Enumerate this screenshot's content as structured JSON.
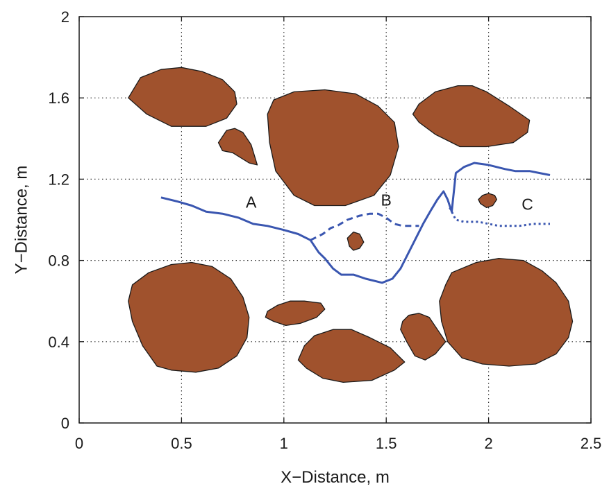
{
  "chart_data": {
    "type": "line",
    "xlabel": "X−Distance, m",
    "ylabel": "Y−Distance, m",
    "xlim": [
      0,
      2.5
    ],
    "ylim": [
      0,
      2
    ],
    "xticks": [
      0,
      0.5,
      1,
      1.5,
      2,
      2.5
    ],
    "xtick_labels": [
      "0",
      "0.5",
      "1",
      "1.5",
      "2",
      "2.5"
    ],
    "yticks": [
      0,
      0.4,
      0.8,
      1.2,
      1.6,
      2
    ],
    "ytick_labels": [
      "0",
      "0.4",
      "0.8",
      "1.2",
      "1.6",
      "2"
    ],
    "grid": true,
    "colors": {
      "obstacle_fill": "#a0522d",
      "obstacle_edge": "#1a1a1a",
      "path": "#3a56b0",
      "grid": "#333333",
      "axes": "#1a1a1a"
    },
    "obstacles": [
      {
        "points": [
          [
            0.24,
            1.6
          ],
          [
            0.3,
            1.7
          ],
          [
            0.4,
            1.74
          ],
          [
            0.5,
            1.75
          ],
          [
            0.6,
            1.73
          ],
          [
            0.7,
            1.69
          ],
          [
            0.76,
            1.63
          ],
          [
            0.77,
            1.57
          ],
          [
            0.72,
            1.5
          ],
          [
            0.62,
            1.46
          ],
          [
            0.45,
            1.46
          ],
          [
            0.33,
            1.52
          ]
        ]
      },
      {
        "points": [
          [
            0.68,
            1.38
          ],
          [
            0.72,
            1.44
          ],
          [
            0.76,
            1.45
          ],
          [
            0.8,
            1.43
          ],
          [
            0.84,
            1.37
          ],
          [
            0.87,
            1.27
          ],
          [
            0.83,
            1.28
          ],
          [
            0.75,
            1.33
          ],
          [
            0.7,
            1.34
          ]
        ]
      },
      {
        "points": [
          [
            0.92,
            1.52
          ],
          [
            0.95,
            1.59
          ],
          [
            1.05,
            1.63
          ],
          [
            1.2,
            1.64
          ],
          [
            1.35,
            1.62
          ],
          [
            1.46,
            1.56
          ],
          [
            1.54,
            1.48
          ],
          [
            1.56,
            1.36
          ],
          [
            1.52,
            1.22
          ],
          [
            1.44,
            1.12
          ],
          [
            1.3,
            1.07
          ],
          [
            1.15,
            1.07
          ],
          [
            1.05,
            1.12
          ],
          [
            0.96,
            1.24
          ],
          [
            0.93,
            1.38
          ]
        ]
      },
      {
        "points": [
          [
            1.66,
            1.57
          ],
          [
            1.74,
            1.63
          ],
          [
            1.85,
            1.66
          ],
          [
            1.92,
            1.66
          ],
          [
            1.99,
            1.63
          ],
          [
            2.1,
            1.56
          ],
          [
            2.2,
            1.49
          ],
          [
            2.19,
            1.43
          ],
          [
            2.12,
            1.38
          ],
          [
            1.99,
            1.36
          ],
          [
            1.86,
            1.36
          ],
          [
            1.74,
            1.42
          ],
          [
            1.66,
            1.48
          ],
          [
            1.63,
            1.52
          ]
        ]
      },
      {
        "points": [
          [
            1.34,
            0.94
          ],
          [
            1.37,
            0.93
          ],
          [
            1.39,
            0.89
          ],
          [
            1.37,
            0.86
          ],
          [
            1.34,
            0.85
          ],
          [
            1.32,
            0.87
          ],
          [
            1.31,
            0.91
          ]
        ]
      },
      {
        "points": [
          [
            1.97,
            1.12
          ],
          [
            2.0,
            1.13
          ],
          [
            2.03,
            1.12
          ],
          [
            2.04,
            1.1
          ],
          [
            2.02,
            1.07
          ],
          [
            1.99,
            1.06
          ],
          [
            1.96,
            1.08
          ],
          [
            1.95,
            1.1
          ]
        ]
      },
      {
        "points": [
          [
            0.26,
            0.68
          ],
          [
            0.34,
            0.74
          ],
          [
            0.45,
            0.78
          ],
          [
            0.55,
            0.79
          ],
          [
            0.65,
            0.77
          ],
          [
            0.74,
            0.71
          ],
          [
            0.8,
            0.62
          ],
          [
            0.83,
            0.52
          ],
          [
            0.82,
            0.42
          ],
          [
            0.77,
            0.33
          ],
          [
            0.68,
            0.27
          ],
          [
            0.57,
            0.25
          ],
          [
            0.45,
            0.26
          ],
          [
            0.38,
            0.28
          ],
          [
            0.31,
            0.38
          ],
          [
            0.26,
            0.5
          ],
          [
            0.24,
            0.6
          ]
        ]
      },
      {
        "points": [
          [
            0.92,
            0.55
          ],
          [
            0.97,
            0.58
          ],
          [
            1.03,
            0.6
          ],
          [
            1.1,
            0.6
          ],
          [
            1.18,
            0.59
          ],
          [
            1.2,
            0.56
          ],
          [
            1.16,
            0.52
          ],
          [
            1.08,
            0.49
          ],
          [
            1.01,
            0.48
          ],
          [
            0.95,
            0.5
          ],
          [
            0.91,
            0.52
          ]
        ]
      },
      {
        "points": [
          [
            1.1,
            0.38
          ],
          [
            1.15,
            0.43
          ],
          [
            1.24,
            0.46
          ],
          [
            1.33,
            0.46
          ],
          [
            1.42,
            0.42
          ],
          [
            1.52,
            0.37
          ],
          [
            1.59,
            0.3
          ],
          [
            1.54,
            0.26
          ],
          [
            1.43,
            0.21
          ],
          [
            1.29,
            0.2
          ],
          [
            1.19,
            0.22
          ],
          [
            1.11,
            0.27
          ],
          [
            1.07,
            0.31
          ]
        ]
      },
      {
        "points": [
          [
            1.58,
            0.5
          ],
          [
            1.61,
            0.53
          ],
          [
            1.66,
            0.54
          ],
          [
            1.71,
            0.52
          ],
          [
            1.75,
            0.46
          ],
          [
            1.79,
            0.4
          ],
          [
            1.74,
            0.34
          ],
          [
            1.69,
            0.31
          ],
          [
            1.64,
            0.33
          ],
          [
            1.6,
            0.4
          ],
          [
            1.57,
            0.46
          ]
        ]
      },
      {
        "points": [
          [
            1.82,
            0.74
          ],
          [
            1.94,
            0.79
          ],
          [
            2.05,
            0.81
          ],
          [
            2.17,
            0.8
          ],
          [
            2.26,
            0.75
          ],
          [
            2.33,
            0.69
          ],
          [
            2.39,
            0.6
          ],
          [
            2.41,
            0.5
          ],
          [
            2.39,
            0.42
          ],
          [
            2.33,
            0.34
          ],
          [
            2.23,
            0.29
          ],
          [
            2.1,
            0.28
          ],
          [
            1.97,
            0.29
          ],
          [
            1.87,
            0.32
          ],
          [
            1.8,
            0.4
          ],
          [
            1.77,
            0.5
          ],
          [
            1.76,
            0.6
          ],
          [
            1.79,
            0.68
          ]
        ]
      }
    ],
    "series": [
      {
        "name": "A",
        "style": "solid",
        "x": [
          0.4,
          0.48,
          0.55,
          0.62,
          0.7,
          0.78,
          0.85,
          0.92,
          1.0,
          1.07,
          1.13
        ],
        "y": [
          1.11,
          1.09,
          1.07,
          1.04,
          1.03,
          1.01,
          0.98,
          0.97,
          0.95,
          0.93,
          0.9
        ]
      },
      {
        "name": "B",
        "style": "dashed",
        "x": [
          1.13,
          1.19,
          1.23,
          1.26,
          1.31,
          1.37,
          1.42,
          1.46,
          1.5,
          1.54,
          1.58,
          1.62,
          1.66
        ],
        "y": [
          0.9,
          0.93,
          0.96,
          0.97,
          1.0,
          1.02,
          1.03,
          1.03,
          1.01,
          0.98,
          0.97,
          0.97,
          0.97
        ]
      },
      {
        "name": "",
        "style": "solid",
        "x": [
          1.13,
          1.17,
          1.2,
          1.24,
          1.28,
          1.34,
          1.4,
          1.48,
          1.53,
          1.57,
          1.6,
          1.64,
          1.68,
          1.72,
          1.75,
          1.78,
          1.8,
          1.82,
          1.84,
          1.88,
          1.93,
          2.0,
          2.08,
          2.13,
          2.2,
          2.25,
          2.3
        ],
        "y": [
          0.9,
          0.84,
          0.81,
          0.76,
          0.73,
          0.73,
          0.71,
          0.69,
          0.71,
          0.76,
          0.82,
          0.9,
          0.98,
          1.05,
          1.1,
          1.14,
          1.1,
          1.04,
          1.23,
          1.26,
          1.28,
          1.27,
          1.25,
          1.24,
          1.24,
          1.23,
          1.22
        ]
      },
      {
        "name": "C",
        "style": "dotted",
        "x": [
          1.81,
          1.84,
          1.88,
          1.95,
          2.05,
          2.15,
          2.22,
          2.3
        ],
        "y": [
          1.06,
          1.0,
          0.99,
          0.99,
          0.97,
          0.97,
          0.98,
          0.98
        ]
      }
    ],
    "annotations": [
      {
        "text": "A",
        "x": 0.84,
        "y": 1.06
      },
      {
        "text": "B",
        "x": 1.5,
        "y": 1.07
      },
      {
        "text": "C",
        "x": 2.19,
        "y": 1.05
      }
    ]
  }
}
